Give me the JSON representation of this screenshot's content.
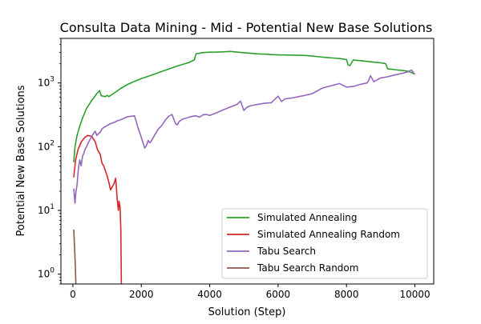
{
  "chart_data": {
    "type": "line",
    "title": "Consulta Data Mining - Mid - Potential New Base Solutions",
    "xlabel": "Solution (Step)",
    "ylabel": "Potential New Base Solutions",
    "xlim": [
      -350,
      10550
    ],
    "ylim": [
      0.7,
      5000
    ],
    "yscale": "log",
    "grid": false,
    "legend_position": "lower-right",
    "xticks": [
      {
        "value": 0,
        "label": "0"
      },
      {
        "value": 2000,
        "label": "2000"
      },
      {
        "value": 4000,
        "label": "4000"
      },
      {
        "value": 6000,
        "label": "6000"
      },
      {
        "value": 8000,
        "label": "8000"
      },
      {
        "value": 10000,
        "label": "10000"
      }
    ],
    "yticks": [
      {
        "value": 1,
        "base": "10",
        "exp": "0"
      },
      {
        "value": 10,
        "base": "10",
        "exp": "1"
      },
      {
        "value": 100,
        "base": "10",
        "exp": "2"
      },
      {
        "value": 1000,
        "base": "10",
        "exp": "3"
      }
    ],
    "series": [
      {
        "name": "Simulated Annealing",
        "color": "#2ca02c",
        "x": [
          25,
          60,
          120,
          200,
          280,
          400,
          550,
          700,
          780,
          830,
          950,
          1000,
          1050,
          1200,
          1400,
          1600,
          1800,
          2000,
          2200,
          2400,
          2600,
          2800,
          3000,
          3200,
          3400,
          3550,
          3600,
          3800,
          4000,
          4200,
          4400,
          4600,
          4800,
          5000,
          5200,
          5400,
          5600,
          5800,
          6000,
          6200,
          6400,
          6600,
          6800,
          7000,
          7200,
          7400,
          7600,
          7800,
          8000,
          8050,
          8100,
          8200,
          8400,
          8600,
          8800,
          9000,
          9150,
          9200,
          9400,
          9600,
          9800,
          10000
        ],
        "y": [
          57,
          98,
          150,
          210,
          280,
          400,
          530,
          680,
          760,
          630,
          610,
          640,
          610,
          690,
          820,
          950,
          1060,
          1170,
          1270,
          1380,
          1520,
          1650,
          1800,
          1950,
          2100,
          2300,
          2850,
          3000,
          3040,
          3050,
          3080,
          3120,
          3050,
          2980,
          2920,
          2860,
          2830,
          2790,
          2760,
          2750,
          2730,
          2720,
          2700,
          2640,
          2570,
          2510,
          2460,
          2410,
          2330,
          1910,
          1870,
          2300,
          2240,
          2180,
          2120,
          2070,
          2000,
          1670,
          1620,
          1580,
          1530,
          1380
        ]
      },
      {
        "name": "Simulated Annealing Random",
        "color": "#d62728",
        "x": [
          25,
          80,
          150,
          250,
          350,
          430,
          550,
          650,
          720,
          800,
          850,
          900,
          1000,
          1050,
          1100,
          1200,
          1250,
          1280,
          1300,
          1330,
          1350,
          1380,
          1400,
          1420
        ],
        "y": [
          33,
          62,
          90,
          120,
          140,
          150,
          145,
          120,
          90,
          75,
          55,
          50,
          35,
          28,
          21,
          26,
          32,
          20,
          14,
          10,
          14,
          11,
          5,
          0.5
        ]
      },
      {
        "name": "Tabu Search",
        "color": "#9467bd",
        "x": [
          25,
          60,
          90,
          120,
          160,
          200,
          240,
          280,
          320,
          360,
          400,
          450,
          500,
          550,
          600,
          650,
          700,
          750,
          800,
          850,
          900,
          1000,
          1100,
          1200,
          1300,
          1400,
          1500,
          1600,
          1700,
          1800,
          1850,
          1900,
          2000,
          2100,
          2150,
          2200,
          2250,
          2300,
          2400,
          2500,
          2600,
          2700,
          2800,
          2900,
          3000,
          3050,
          3100,
          3200,
          3400,
          3500,
          3600,
          3700,
          3800,
          3900,
          4000,
          4200,
          4400,
          4600,
          4800,
          4900,
          5000,
          5100,
          5200,
          5400,
          5600,
          5800,
          6000,
          6100,
          6200,
          6400,
          6600,
          6800,
          7000,
          7200,
          7300,
          7400,
          7600,
          7800,
          8000,
          8200,
          8400,
          8600,
          8650,
          8700,
          8800,
          9000,
          9200,
          9400,
          9600,
          9800,
          9900,
          10000
        ],
        "y": [
          22,
          13,
          20,
          25,
          45,
          62,
          50,
          70,
          80,
          92,
          100,
          115,
          130,
          145,
          160,
          175,
          150,
          160,
          170,
          190,
          200,
          215,
          230,
          240,
          255,
          265,
          280,
          295,
          300,
          305,
          250,
          200,
          140,
          95,
          105,
          125,
          115,
          125,
          155,
          190,
          215,
          260,
          300,
          320,
          230,
          220,
          245,
          270,
          290,
          300,
          305,
          290,
          315,
          320,
          310,
          340,
          380,
          420,
          460,
          520,
          370,
          420,
          440,
          460,
          480,
          490,
          620,
          510,
          560,
          580,
          610,
          640,
          680,
          780,
          830,
          860,
          920,
          980,
          860,
          880,
          950,
          1000,
          1100,
          1300,
          1050,
          1200,
          1250,
          1330,
          1400,
          1500,
          1600,
          1350
        ]
      },
      {
        "name": "Tabu Search Random",
        "color": "#8c564b",
        "x": [
          25,
          50,
          75,
          90
        ],
        "y": [
          5,
          2.5,
          1.2,
          0.6
        ]
      }
    ]
  }
}
